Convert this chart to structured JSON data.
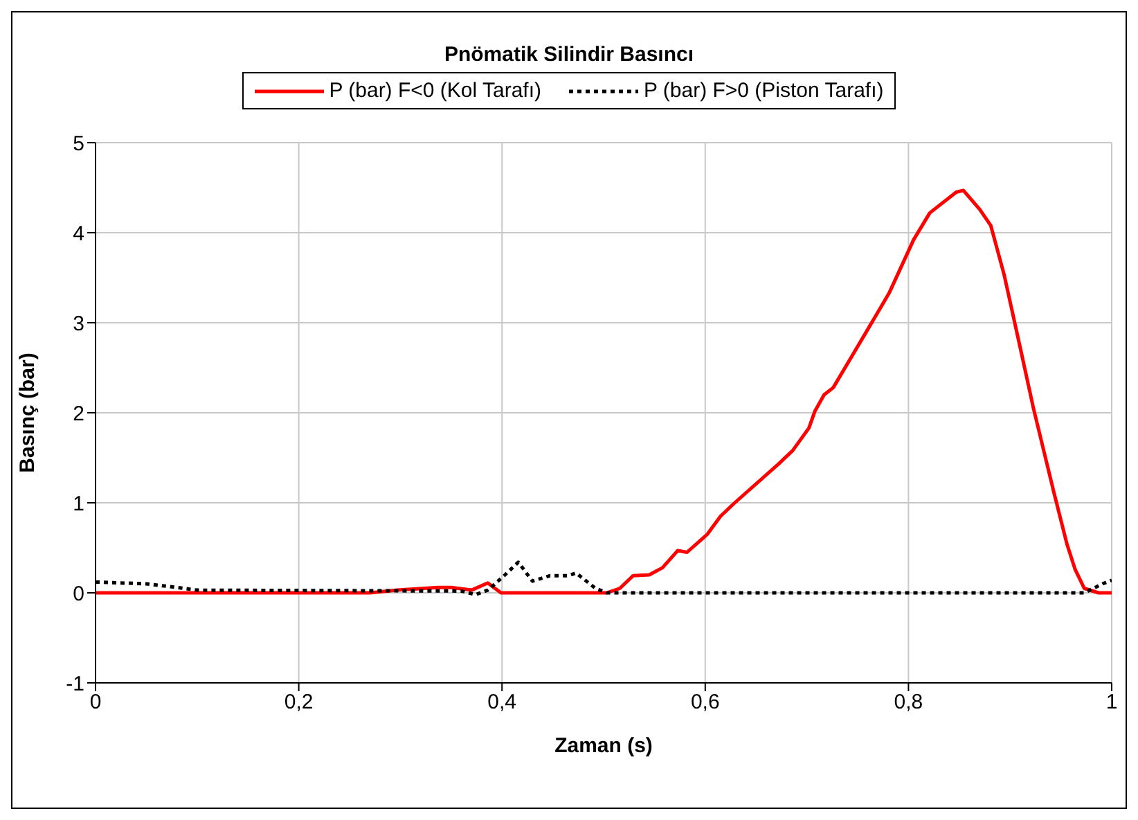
{
  "chart_data": {
    "type": "line",
    "title": "Pnömatik Silindir Basıncı",
    "xlabel": "Zaman (s)",
    "ylabel": "Basınç (bar)",
    "xlim": [
      0,
      1
    ],
    "xticks": [
      0,
      {
        "value": 0.2,
        "label": "0,2"
      },
      {
        "value": 0.4,
        "label": "0,4"
      },
      {
        "value": 0.6,
        "label": "0,6"
      },
      {
        "value": 0.8,
        "label": "0,8"
      },
      1
    ],
    "ylim": [
      -1,
      5
    ],
    "yticks": [
      -1,
      0,
      1,
      2,
      3,
      4,
      5
    ],
    "grid": true,
    "legend": "top",
    "marker": "none",
    "series": [
      {
        "name": "P (bar) F<0 (Kol Tarafı)",
        "color": "#ff0000",
        "line_style": "solid",
        "x": [
          0,
          0.27,
          0.297,
          0.337,
          0.35,
          0.37,
          0.386,
          0.399,
          0.503,
          0.516,
          0.529,
          0.545,
          0.558,
          0.573,
          0.582,
          0.602,
          0.615,
          0.629,
          0.672,
          0.686,
          0.702,
          0.708,
          0.717,
          0.726,
          0.757,
          0.781,
          0.805,
          0.821,
          0.847,
          0.854,
          0.87,
          0.881,
          0.894,
          0.911,
          0.923,
          0.943,
          0.956,
          0.964,
          0.973,
          0.987,
          1
        ],
        "values": [
          0,
          0,
          0.03,
          0.06,
          0.06,
          0.03,
          0.11,
          0,
          0,
          0.05,
          0.19,
          0.2,
          0.28,
          0.47,
          0.45,
          0.65,
          0.85,
          1.0,
          1.43,
          1.58,
          1.83,
          2.02,
          2.2,
          2.28,
          2.87,
          3.33,
          3.92,
          4.22,
          4.45,
          4.47,
          4.26,
          4.08,
          3.54,
          2.67,
          2.05,
          1.12,
          0.54,
          0.26,
          0.05,
          0,
          0
        ]
      },
      {
        "name": "P (bar) F>0 (Piston Tarafı)",
        "color": "#000000",
        "line_style": "dotted",
        "x": [
          0,
          0.05,
          0.08,
          0.1,
          0.36,
          0.374,
          0.386,
          0.403,
          0.416,
          0.43,
          0.447,
          0.465,
          0.473,
          0.492,
          0.503,
          0.973,
          0.991,
          1
        ],
        "values": [
          0.12,
          0.1,
          0.06,
          0.03,
          0.02,
          -0.02,
          0.03,
          0.2,
          0.34,
          0.13,
          0.19,
          0.19,
          0.22,
          0.05,
          0,
          0,
          0.1,
          0.14
        ]
      }
    ]
  }
}
